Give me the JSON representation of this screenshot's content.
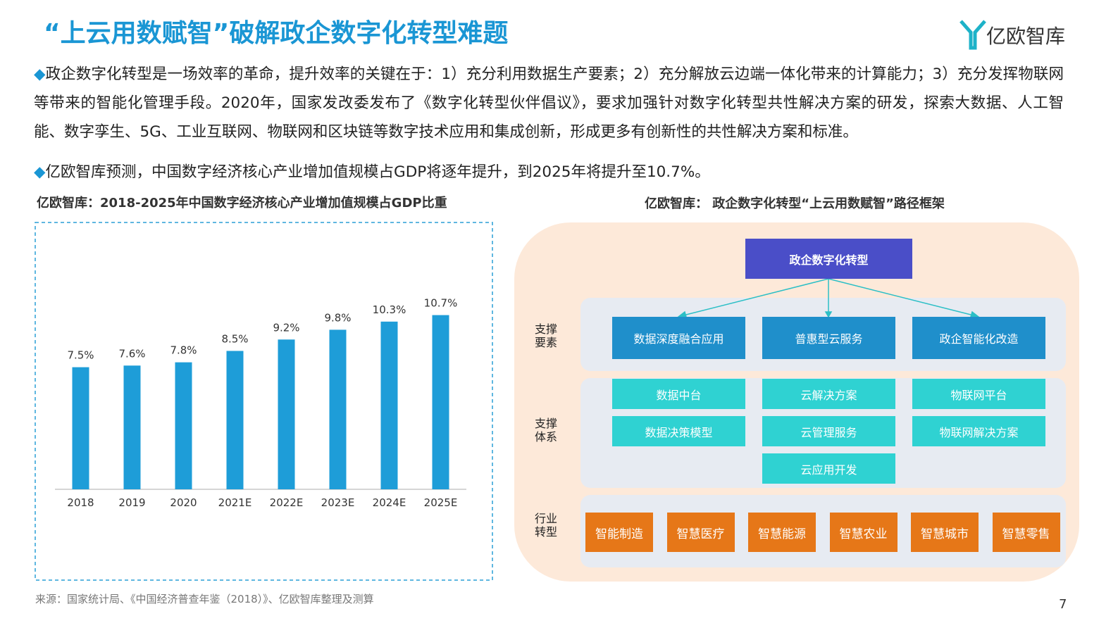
{
  "header": {
    "title": "“上云用数赋智”破解政企数字化转型难题",
    "logo": "亿欧智库"
  },
  "paragraphs": [
    "政企数字化转型是一场效率的革命，提升效率的关键在于：1）充分利用数据生产要素；2）充分解放云边端一体化带来的计算能力；3）充分发挥物联网等带来的智能化管理手段。2020年，国家发改委发布了《数字化转型伙伴倡议》，要求加强针对数字化转型共性解决方案的研发，探索大数据、人工智能、数字孪生、5G、工业互联网、物联网和区块链等数字技术应用和集成创新，形成更多有创新性的共性解决方案和标准。",
    "亿欧智库预测，中国数字经济核心产业增加值规模占GDP将逐年提升，到2025年将提升至10.7%。"
  ],
  "chart_data": {
    "type": "bar",
    "title": "亿欧智库：2018-2025年中国数字经济核心产业增加值规模占GDP比重",
    "categories": [
      "2018",
      "2019",
      "2020",
      "2021E",
      "2022E",
      "2023E",
      "2024E",
      "2025E"
    ],
    "values": [
      7.5,
      7.6,
      7.8,
      8.5,
      9.2,
      9.8,
      10.3,
      10.7
    ],
    "value_labels": [
      "7.5%",
      "7.6%",
      "7.8%",
      "8.5%",
      "9.2%",
      "9.8%",
      "10.3%",
      "10.7%"
    ],
    "color": "#1e9dd8",
    "ylim": [
      0,
      16
    ]
  },
  "diagram": {
    "title": "亿欧智库： 政企数字化转型“上云用数赋智”路径框架",
    "top": "政企数字化转型",
    "layers": [
      {
        "label_lines": [
          "支撑",
          "要素"
        ],
        "columns": [
          [
            "数据深度融合应用"
          ],
          [
            "普惠型云服务"
          ],
          [
            "政企智能化改造"
          ]
        ]
      },
      {
        "label_lines": [
          "支撑",
          "体系"
        ],
        "columns": [
          [
            "数据中台",
            "数据决策模型"
          ],
          [
            "云解决方案",
            "云管理服务",
            "云应用开发"
          ],
          [
            "物联网平台",
            "物联网解决方案"
          ]
        ]
      },
      {
        "label_lines": [
          "行业",
          "转型"
        ],
        "items": [
          "智能制造",
          "智慧医疗",
          "智慧能源",
          "智慧农业",
          "智慧城市",
          "智慧零售"
        ]
      }
    ]
  },
  "source": "来源：国家统计局、《中国经济普查年鉴（2018）》、亿欧智库整理及测算",
  "page_number": "7"
}
